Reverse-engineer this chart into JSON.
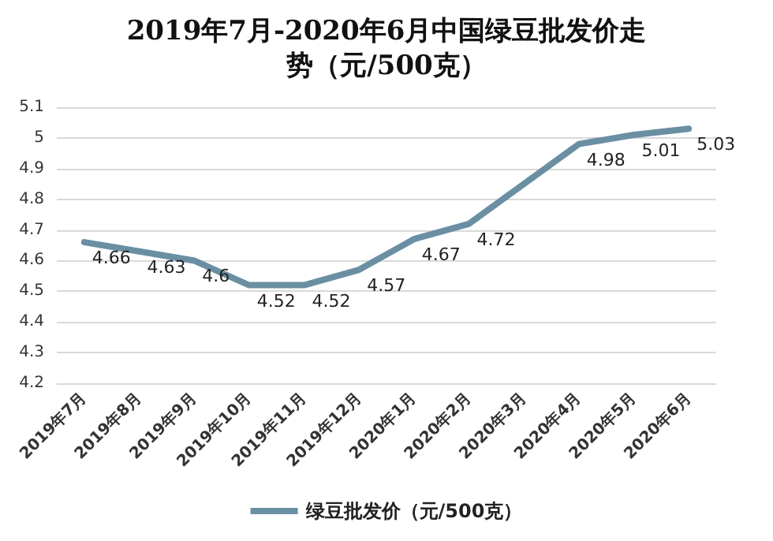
{
  "chart_data": {
    "type": "line",
    "title": "2019年7月-2020年6月中国绿豆批发价走势（元/500克）",
    "categories": [
      "2019年7月",
      "2019年8月",
      "2019年9月",
      "2019年10月",
      "2019年11月",
      "2019年12月",
      "2020年1月",
      "2020年2月",
      "2020年3月",
      "2020年4月",
      "2020年5月",
      "2020年6月"
    ],
    "series": [
      {
        "name": "绿豆批发价（元/500克）",
        "color": "#6a8fa3",
        "values": [
          4.66,
          4.63,
          4.6,
          4.52,
          4.52,
          4.57,
          4.67,
          4.72,
          4.85,
          4.98,
          5.01,
          5.03
        ],
        "value_labels": [
          "4.66",
          "4.63",
          "4.6",
          "4.52",
          "4.52",
          "4.57",
          "4.67",
          "4.72",
          null,
          "4.98",
          "5.01",
          "5.03"
        ]
      }
    ],
    "ylim": [
      4.2,
      5.1
    ],
    "yticks": [
      4.2,
      4.3,
      4.4,
      4.5,
      4.6,
      4.7,
      4.8,
      4.9,
      5,
      5.1
    ],
    "grid": "y",
    "legend": "bottom",
    "marker": "none",
    "line_style": "solid"
  }
}
